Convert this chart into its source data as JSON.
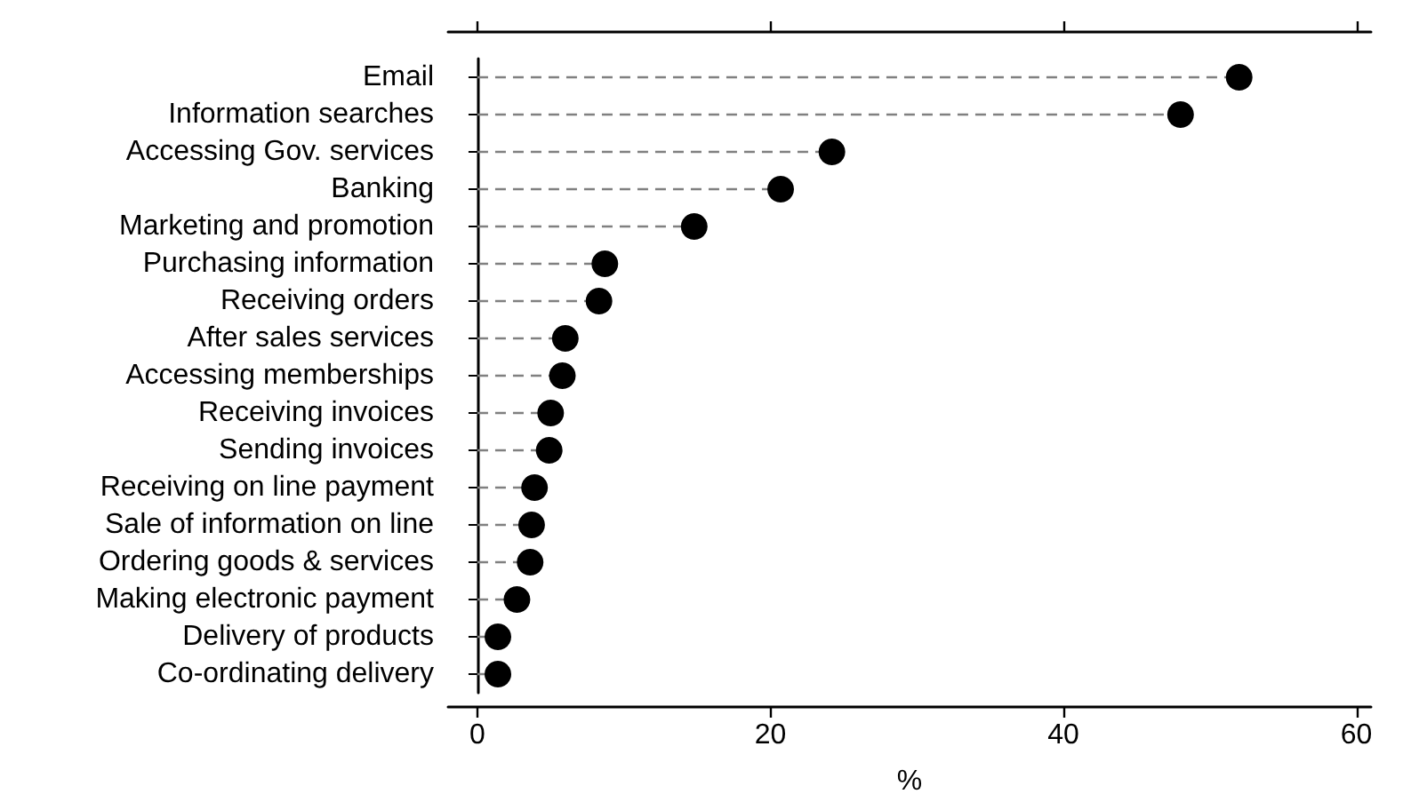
{
  "chart_data": {
    "type": "lollipop",
    "orientation": "horizontal",
    "xlabel": "%",
    "categories": [
      "Email",
      "Information searches",
      "Accessing Gov. services",
      "Banking",
      "Marketing and promotion",
      "Purchasing information",
      "Receiving orders",
      "After sales services",
      "Accessing memberships",
      "Receiving invoices",
      "Sending invoices",
      "Receiving on line payment",
      "Sale of information on line",
      "Ordering goods & services",
      "Making electronic payment",
      "Delivery of products",
      "Co-ordinating delivery"
    ],
    "values": [
      52,
      48,
      24.2,
      20.7,
      14.8,
      8.7,
      8.3,
      6,
      5.8,
      5,
      4.9,
      3.9,
      3.7,
      3.6,
      2.7,
      1.4,
      1.4
    ],
    "color": "#000000",
    "line_style": "dashed",
    "marker": "circle",
    "xlim": [
      -2,
      61
    ],
    "xticks": [
      0,
      20,
      40,
      60
    ],
    "grid": false
  }
}
